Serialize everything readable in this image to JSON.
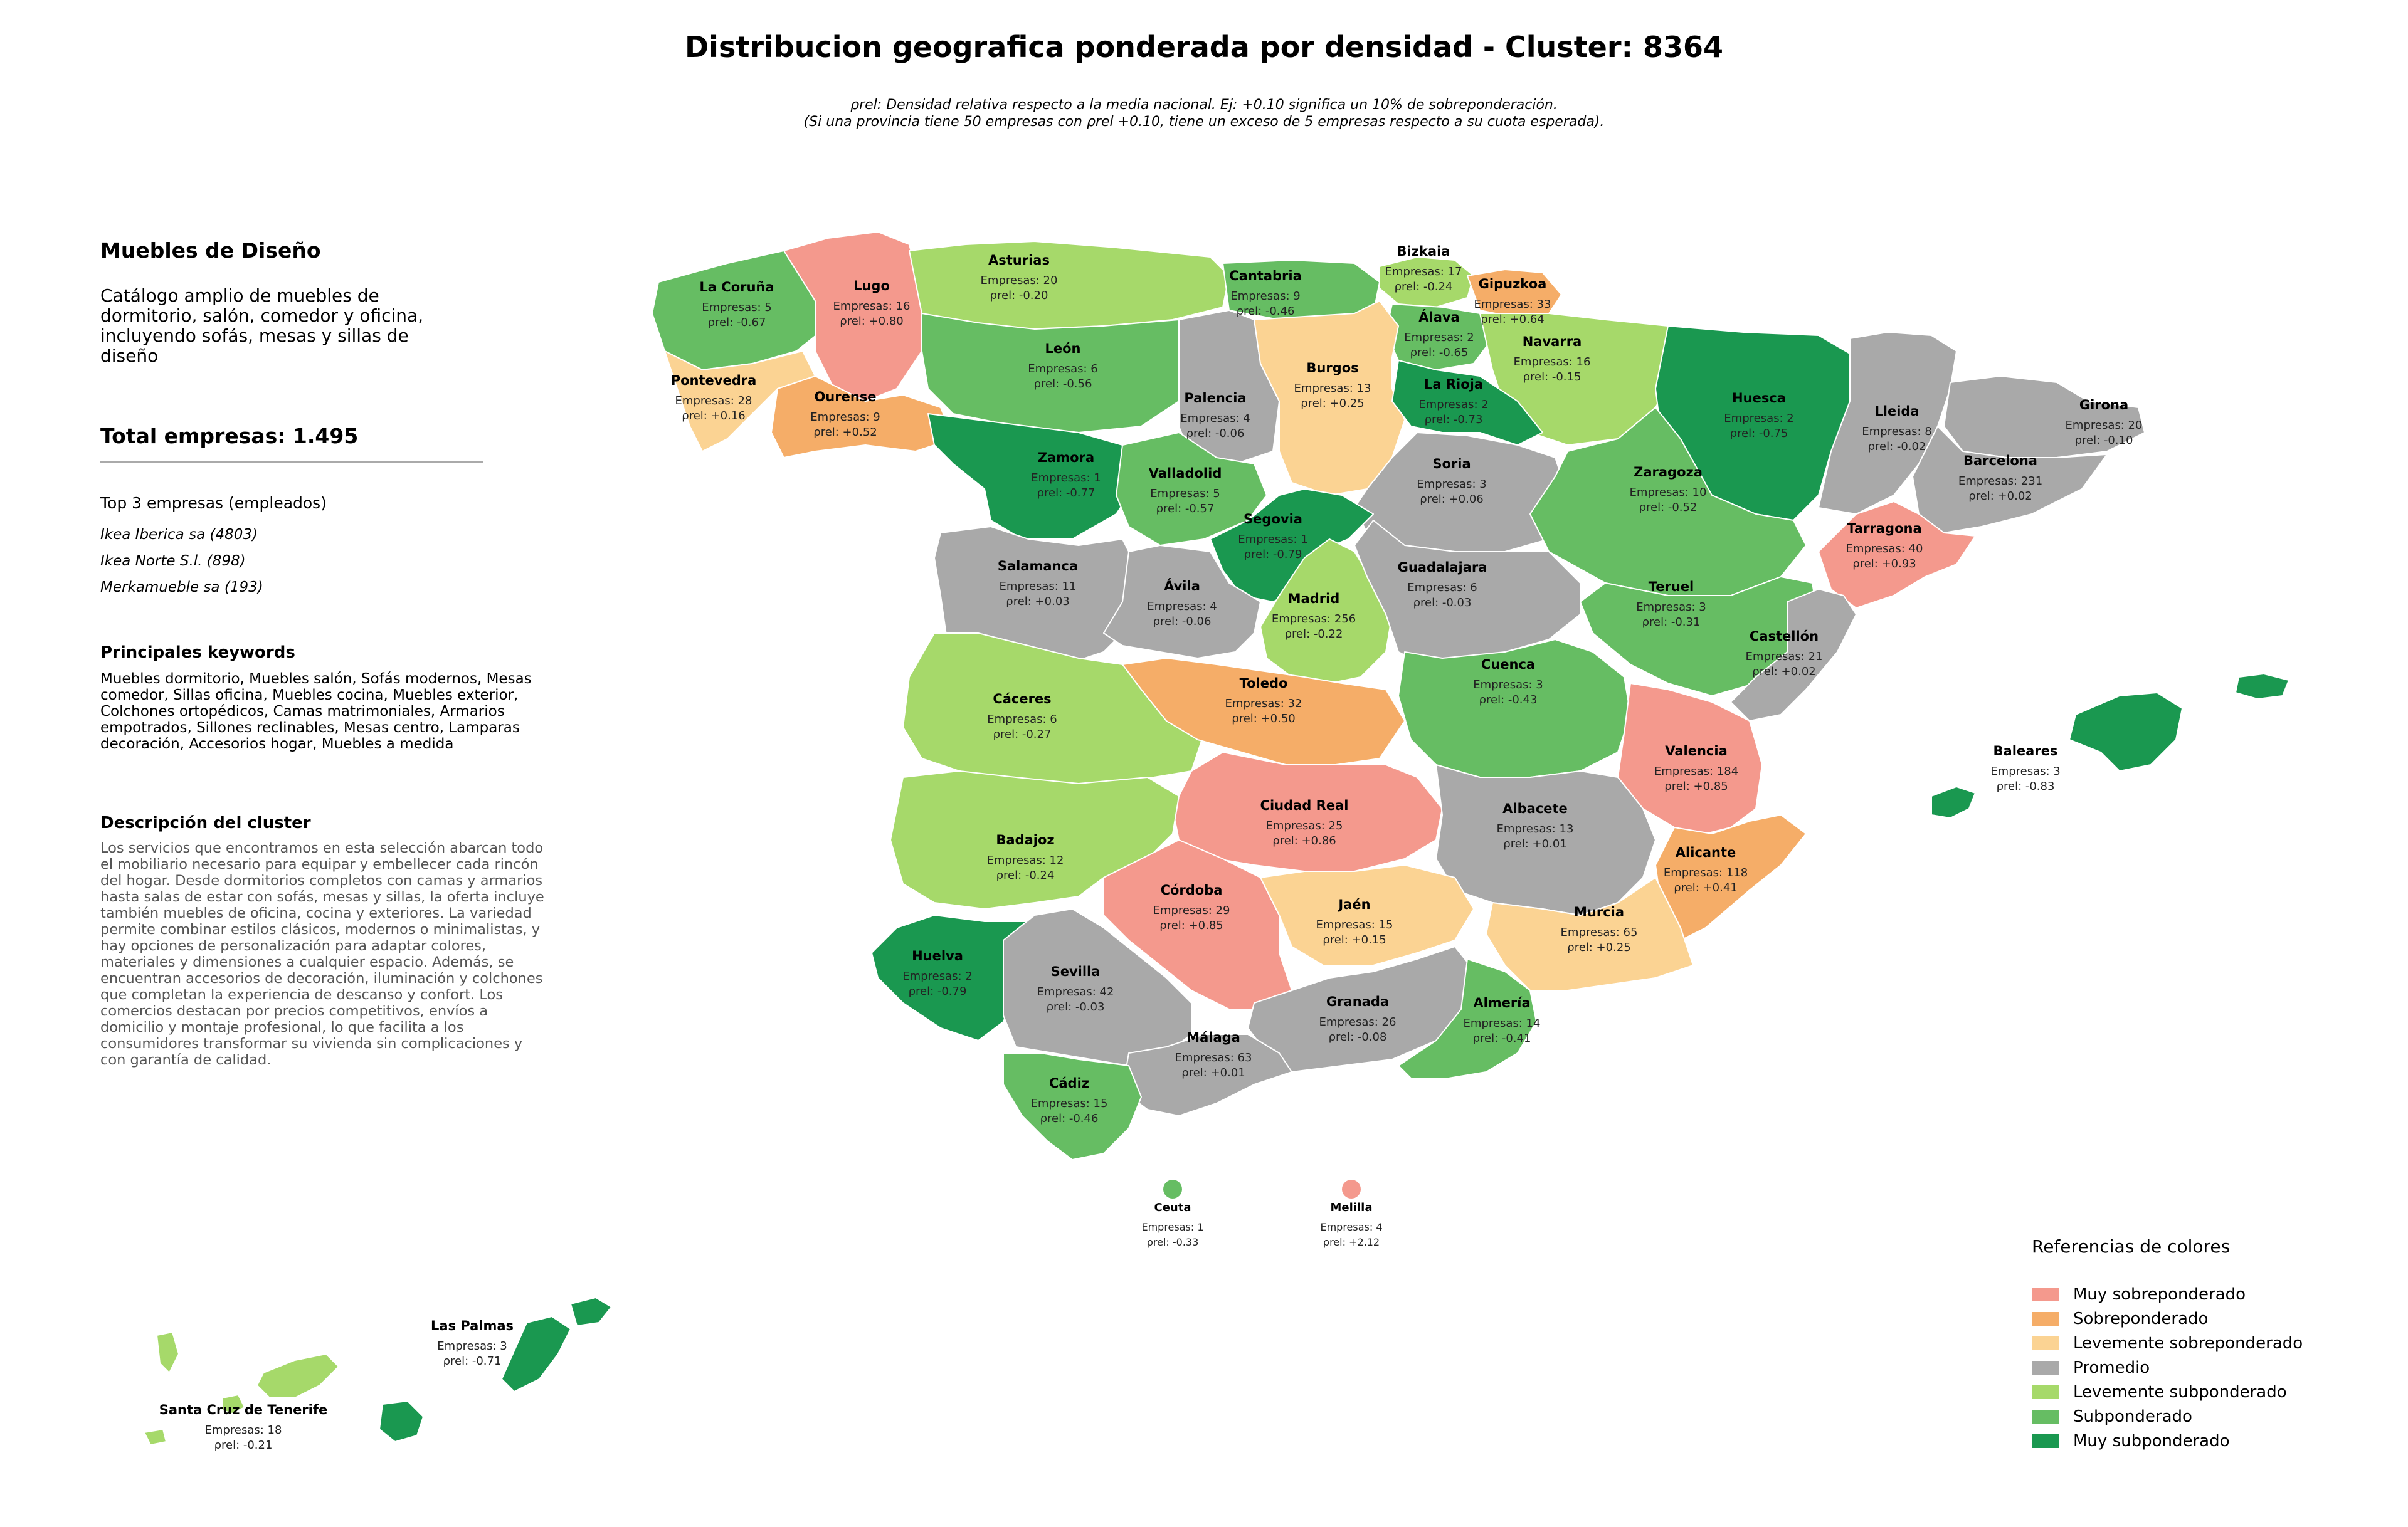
{
  "title": "Distribucion geografica ponderada por densidad - Cluster: 8364",
  "subtitle_line1": "ρrel: Densidad relativa respecto a la media nacional. Ej: +0.10 significa un 10% de sobreponderación.",
  "subtitle_line2": "(Si una provincia tiene 50 empresas con ρrel +0.10, tiene un exceso de 5 empresas respecto a su cuota esperada).",
  "panel": {
    "category": "Muebles de Diseño",
    "category_description": "Catálogo amplio de muebles de dormitorio, salón, comedor y oficina, incluyendo sofás, mesas y sillas de diseño",
    "total_label": "Total empresas: 1.495",
    "top3_heading": "Top 3 empresas (empleados)",
    "top3": [
      "Ikea Iberica sa (4803)",
      "Ikea Norte S.l. (898)",
      "Merkamueble sa (193)"
    ],
    "keywords_heading": "Principales keywords",
    "keywords": "Muebles dormitorio, Muebles salón, Sofás modernos, Mesas comedor, Sillas oficina, Muebles cocina, Muebles exterior, Colchones ortopédicos, Camas matrimoniales, Armarios empotrados, Sillones reclinables, Mesas centro, Lamparas decoración, Accesorios hogar, Muebles a medida",
    "description_heading": "Descripción del cluster",
    "description": "Los servicios que encontramos en esta selección abarcan todo el mobiliario necesario para equipar y embellecer cada rincón del hogar. Desde dormitorios completos con camas y armarios hasta salas de estar con sofás, mesas y sillas, la oferta incluye también muebles de oficina, cocina y exteriores. La variedad permite combinar estilos clásicos, modernos o minimalistas, y hay opciones de personalización para adaptar colores, materiales y dimensiones a cualquier espacio. Además, se encuentran accesorios de decoración, iluminación y colchones que completan la experiencia de descanso y confort. Los comercios destacan por precios competitivos, envíos a domicilio y montaje profesional, lo que facilita a los consumidores transformar su vivienda sin complicaciones y con garantía de calidad."
  },
  "empresas_prefix": "Empresas: ",
  "rho_prefix": "ρrel: ",
  "legend": {
    "title": "Referencias de colores",
    "items": [
      {
        "key": "muy_sobre",
        "label": "Muy sobreponderado",
        "color": "#f4998d"
      },
      {
        "key": "sobre",
        "label": "Sobreponderado",
        "color": "#f5ad68"
      },
      {
        "key": "lev_sobre",
        "label": "Levemente sobreponderado",
        "color": "#fbd393"
      },
      {
        "key": "promedio",
        "label": "Promedio",
        "color": "#a9a9a9"
      },
      {
        "key": "lev_sub",
        "label": "Levemente subponderado",
        "color": "#a6d96a"
      },
      {
        "key": "sub",
        "label": "Subponderado",
        "color": "#66bd63"
      },
      {
        "key": "muy_sub",
        "label": "Muy subponderado",
        "color": "#1a9850"
      }
    ]
  },
  "provinces": [
    {
      "name": "La Coruña",
      "empresas": "5",
      "rho": "-0.67",
      "class": "sub"
    },
    {
      "name": "Lugo",
      "empresas": "16",
      "rho": "+0.80",
      "class": "muy_sobre"
    },
    {
      "name": "Asturias",
      "empresas": "20",
      "rho": "-0.20",
      "class": "lev_sub"
    },
    {
      "name": "Cantabria",
      "empresas": "9",
      "rho": "-0.46",
      "class": "sub"
    },
    {
      "name": "Bizkaia",
      "empresas": "17",
      "rho": "-0.24",
      "class": "lev_sub"
    },
    {
      "name": "Gipuzkoa",
      "empresas": "33",
      "rho": "+0.64",
      "class": "sobre"
    },
    {
      "name": "Álava",
      "empresas": "2",
      "rho": "-0.65",
      "class": "sub"
    },
    {
      "name": "Navarra",
      "empresas": "16",
      "rho": "-0.15",
      "class": "lev_sub"
    },
    {
      "name": "Pontevedra",
      "empresas": "28",
      "rho": "+0.16",
      "class": "lev_sobre"
    },
    {
      "name": "Ourense",
      "empresas": "9",
      "rho": "+0.52",
      "class": "sobre"
    },
    {
      "name": "León",
      "empresas": "6",
      "rho": "-0.56",
      "class": "sub"
    },
    {
      "name": "Palencia",
      "empresas": "4",
      "rho": "-0.06",
      "class": "promedio"
    },
    {
      "name": "Burgos",
      "empresas": "13",
      "rho": "+0.25",
      "class": "lev_sobre"
    },
    {
      "name": "La Rioja",
      "empresas": "2",
      "rho": "-0.73",
      "class": "muy_sub"
    },
    {
      "name": "Huesca",
      "empresas": "2",
      "rho": "-0.75",
      "class": "muy_sub"
    },
    {
      "name": "Lleida",
      "empresas": "8",
      "rho": "-0.02",
      "class": "promedio"
    },
    {
      "name": "Girona",
      "empresas": "20",
      "rho": "-0.10",
      "class": "promedio"
    },
    {
      "name": "Barcelona",
      "empresas": "231",
      "rho": "+0.02",
      "class": "promedio"
    },
    {
      "name": "Zamora",
      "empresas": "1",
      "rho": "-0.77",
      "class": "muy_sub"
    },
    {
      "name": "Valladolid",
      "empresas": "5",
      "rho": "-0.57",
      "class": "sub"
    },
    {
      "name": "Soria",
      "empresas": "3",
      "rho": "+0.06",
      "class": "promedio"
    },
    {
      "name": "Zaragoza",
      "empresas": "10",
      "rho": "-0.52",
      "class": "sub"
    },
    {
      "name": "Tarragona",
      "empresas": "40",
      "rho": "+0.93",
      "class": "muy_sobre"
    },
    {
      "name": "Segovia",
      "empresas": "1",
      "rho": "-0.79",
      "class": "muy_sub"
    },
    {
      "name": "Salamanca",
      "empresas": "11",
      "rho": "+0.03",
      "class": "promedio"
    },
    {
      "name": "Ávila",
      "empresas": "4",
      "rho": "-0.06",
      "class": "promedio"
    },
    {
      "name": "Madrid",
      "empresas": "256",
      "rho": "-0.22",
      "class": "lev_sub"
    },
    {
      "name": "Guadalajara",
      "empresas": "6",
      "rho": "-0.03",
      "class": "promedio"
    },
    {
      "name": "Teruel",
      "empresas": "3",
      "rho": "-0.31",
      "class": "sub"
    },
    {
      "name": "Castellón",
      "empresas": "21",
      "rho": "+0.02",
      "class": "promedio"
    },
    {
      "name": "Cáceres",
      "empresas": "6",
      "rho": "-0.27",
      "class": "lev_sub"
    },
    {
      "name": "Toledo",
      "empresas": "32",
      "rho": "+0.50",
      "class": "sobre"
    },
    {
      "name": "Cuenca",
      "empresas": "3",
      "rho": "-0.43",
      "class": "sub"
    },
    {
      "name": "Valencia",
      "empresas": "184",
      "rho": "+0.85",
      "class": "muy_sobre"
    },
    {
      "name": "Baleares",
      "empresas": "3",
      "rho": "-0.83",
      "class": "muy_sub"
    },
    {
      "name": "Ciudad Real",
      "empresas": "25",
      "rho": "+0.86",
      "class": "muy_sobre"
    },
    {
      "name": "Albacete",
      "empresas": "13",
      "rho": "+0.01",
      "class": "promedio"
    },
    {
      "name": "Badajoz",
      "empresas": "12",
      "rho": "-0.24",
      "class": "lev_sub"
    },
    {
      "name": "Alicante",
      "empresas": "118",
      "rho": "+0.41",
      "class": "sobre"
    },
    {
      "name": "Córdoba",
      "empresas": "29",
      "rho": "+0.85",
      "class": "muy_sobre"
    },
    {
      "name": "Jaén",
      "empresas": "15",
      "rho": "+0.15",
      "class": "lev_sobre"
    },
    {
      "name": "Murcia",
      "empresas": "65",
      "rho": "+0.25",
      "class": "lev_sobre"
    },
    {
      "name": "Huelva",
      "empresas": "2",
      "rho": "-0.79",
      "class": "muy_sub"
    },
    {
      "name": "Sevilla",
      "empresas": "42",
      "rho": "-0.03",
      "class": "promedio"
    },
    {
      "name": "Granada",
      "empresas": "26",
      "rho": "-0.08",
      "class": "promedio"
    },
    {
      "name": "Almería",
      "empresas": "14",
      "rho": "-0.41",
      "class": "sub"
    },
    {
      "name": "Málaga",
      "empresas": "63",
      "rho": "+0.01",
      "class": "promedio"
    },
    {
      "name": "Cádiz",
      "empresas": "15",
      "rho": "-0.46",
      "class": "sub"
    },
    {
      "name": "Ceuta",
      "empresas": "1",
      "rho": "-0.33",
      "class": "sub"
    },
    {
      "name": "Melilla",
      "empresas": "4",
      "rho": "+2.12",
      "class": "muy_sobre"
    },
    {
      "name": "Las Palmas",
      "empresas": "3",
      "rho": "-0.71",
      "class": "muy_sub"
    },
    {
      "name": "Santa Cruz de Tenerife",
      "empresas": "18",
      "rho": "-0.21",
      "class": "lev_sub"
    }
  ]
}
